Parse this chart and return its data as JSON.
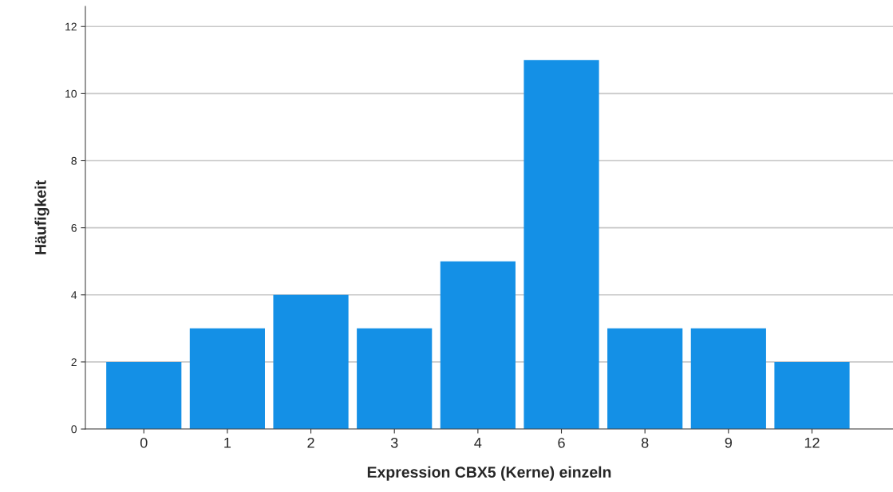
{
  "chart_data": {
    "type": "bar",
    "xlabel": "Expression CBX5 (Kerne) einzeln",
    "ylabel": "Häufigkeit",
    "categories": [
      "0",
      "1",
      "2",
      "3",
      "4",
      "6",
      "8",
      "9",
      "12"
    ],
    "values": [
      2,
      3,
      4,
      3,
      5,
      11,
      3,
      3,
      2
    ],
    "color": "#1490e6",
    "ylim": [
      0,
      12.6
    ],
    "yticks": [
      0,
      2,
      4,
      6,
      8,
      10,
      12
    ],
    "grid": "y"
  }
}
